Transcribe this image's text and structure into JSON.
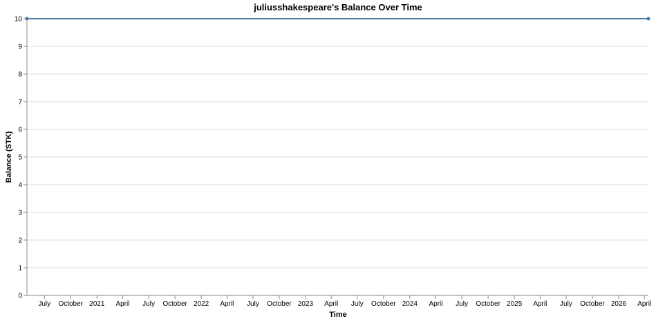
{
  "chart_data": {
    "type": "line",
    "title": "juliusshakespeare's Balance Over Time",
    "xlabel": "Time",
    "ylabel": "Balance (STK)",
    "ylim": [
      0,
      10
    ],
    "yticks": [
      "0",
      "1",
      "2",
      "3",
      "4",
      "5",
      "6",
      "7",
      "8",
      "9",
      "10"
    ],
    "xlim": [
      "2020-05-01",
      "2026-04-15"
    ],
    "xticks": [
      {
        "date": "2020-07-01",
        "label": "July"
      },
      {
        "date": "2020-10-01",
        "label": "October"
      },
      {
        "date": "2021-01-01",
        "label": "2021"
      },
      {
        "date": "2021-04-01",
        "label": "April"
      },
      {
        "date": "2021-07-01",
        "label": "July"
      },
      {
        "date": "2021-10-01",
        "label": "October"
      },
      {
        "date": "2022-01-01",
        "label": "2022"
      },
      {
        "date": "2022-04-01",
        "label": "April"
      },
      {
        "date": "2022-07-01",
        "label": "July"
      },
      {
        "date": "2022-10-01",
        "label": "October"
      },
      {
        "date": "2023-01-01",
        "label": "2023"
      },
      {
        "date": "2023-04-01",
        "label": "April"
      },
      {
        "date": "2023-07-01",
        "label": "July"
      },
      {
        "date": "2023-10-01",
        "label": "October"
      },
      {
        "date": "2024-01-01",
        "label": "2024"
      },
      {
        "date": "2024-04-01",
        "label": "April"
      },
      {
        "date": "2024-07-01",
        "label": "July"
      },
      {
        "date": "2024-10-01",
        "label": "October"
      },
      {
        "date": "2025-01-01",
        "label": "2025"
      },
      {
        "date": "2025-04-01",
        "label": "April"
      },
      {
        "date": "2025-07-01",
        "label": "July"
      },
      {
        "date": "2025-10-01",
        "label": "October"
      },
      {
        "date": "2026-01-01",
        "label": "2026"
      },
      {
        "date": "2026-04-01",
        "label": "April"
      }
    ],
    "grid": true,
    "series": [
      {
        "color": "#4c78a8",
        "points": [
          {
            "x": "2020-05-01",
            "y": 10
          },
          {
            "x": "2026-04-15",
            "y": 10
          }
        ]
      }
    ]
  }
}
